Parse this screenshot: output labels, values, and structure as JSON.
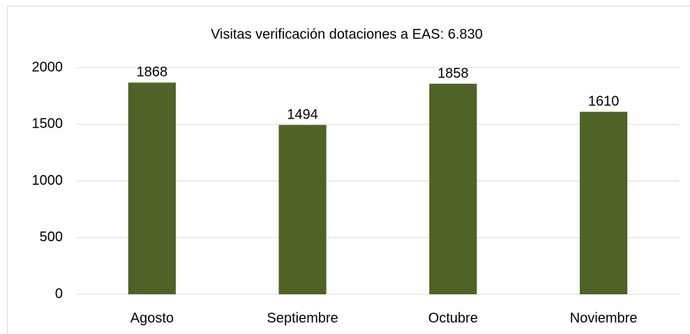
{
  "chart_data": {
    "type": "bar",
    "title": "Visitas verificación dotaciones a EAS: 6.830",
    "categories": [
      "Agosto",
      "Septiembre",
      "Octubre",
      "Noviembre"
    ],
    "values": [
      1868,
      1494,
      1858,
      1610
    ],
    "color": "#4f6228",
    "ylim": [
      0,
      2000
    ],
    "yticks": [
      0,
      500,
      1000,
      1500,
      2000
    ],
    "grid": true
  }
}
